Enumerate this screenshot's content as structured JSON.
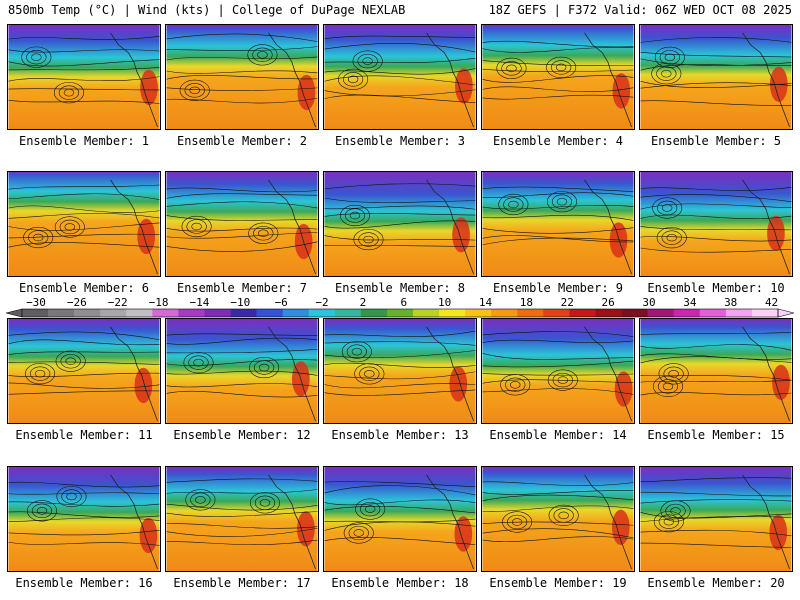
{
  "header": {
    "left": "850mb Temp (°C) | Wind (kts) | College of DuPage NEXLAB",
    "right": "18Z GEFS | F372 Valid: 06Z WED OCT 08 2025"
  },
  "member_label_prefix": "Ensemble Member:",
  "members": [
    "1",
    "2",
    "3",
    "4",
    "5",
    "6",
    "7",
    "8",
    "9",
    "10",
    "11",
    "12",
    "13",
    "14",
    "15",
    "16",
    "17",
    "18",
    "19",
    "20"
  ],
  "colorbar": {
    "tick_labels": [
      "−30",
      "−26",
      "−22",
      "−18",
      "−14",
      "−10",
      "−6",
      "−2",
      "2",
      "6",
      "10",
      "14",
      "18",
      "22",
      "26",
      "30",
      "34",
      "38",
      "42"
    ],
    "colors": [
      "#5e5e5e",
      "#787878",
      "#8f8f8f",
      "#a8a8a8",
      "#c0c0c0",
      "#d36ad6",
      "#a53bc4",
      "#7c2cb5",
      "#3b2aa8",
      "#2f55d6",
      "#2d8fe0",
      "#2cc4dc",
      "#32b89c",
      "#2f9a48",
      "#64b230",
      "#b8d226",
      "#f2e81e",
      "#f7c31a",
      "#f59a14",
      "#ef6d12",
      "#e0401a",
      "#c41818",
      "#991313",
      "#7d1020",
      "#a01878",
      "#c828b0",
      "#e45fda",
      "#f2a4ec",
      "#f9d2f6"
    ]
  },
  "map_colors": {
    "cold_top": "#7a2fbf",
    "cold_mid": "#3a55d0",
    "cyan": "#2bc4d8",
    "green": "#3aa85a",
    "yellow": "#e8d82a",
    "orange": "#f5a51c",
    "warm": "#f08a16",
    "hot": "#d8301a",
    "land_outline": "#222222"
  }
}
